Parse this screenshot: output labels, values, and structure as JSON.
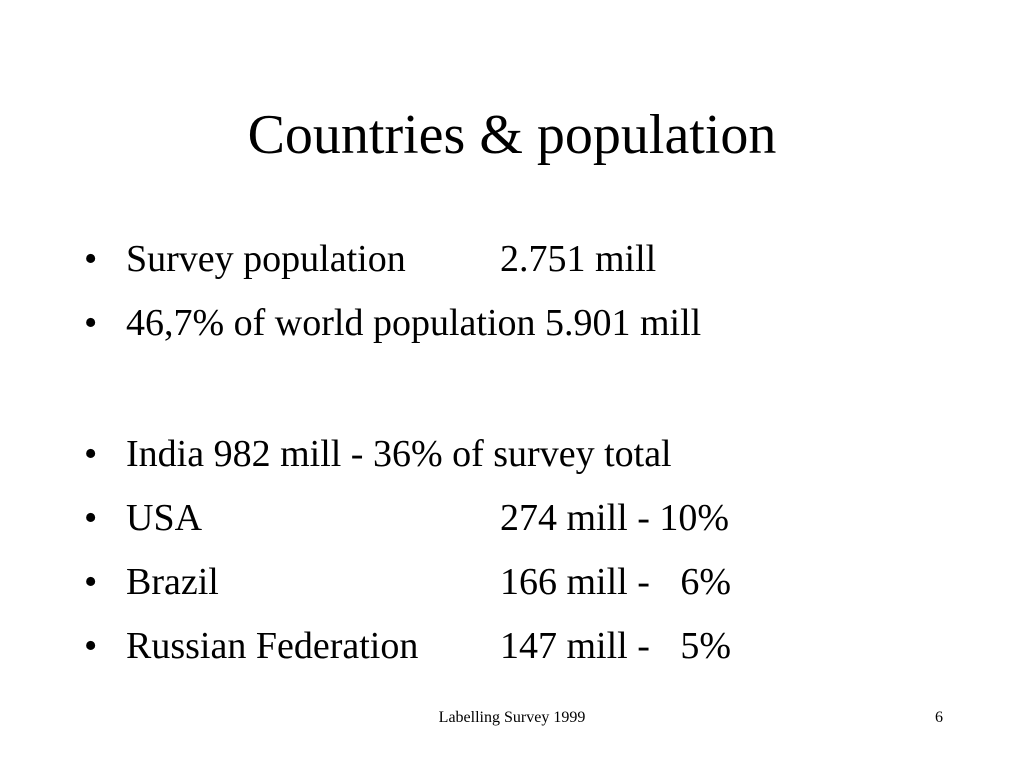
{
  "slide": {
    "title": "Countries & population",
    "bullet_glyph": "•",
    "bullets": [
      {
        "label": "Survey population",
        "value": "2.751 mill"
      },
      {
        "text": "46,7% of world population 5.901 mill"
      },
      {
        "text": "India 982 mill - 36% of survey total"
      },
      {
        "label": "USA",
        "value_main": "274 mill -",
        "value_pct": "10%"
      },
      {
        "label": "Brazil",
        "value_main": "166 mill -",
        "value_pct": "6%"
      },
      {
        "label": "Russian Federation",
        "value_main": "147 mill -",
        "value_pct": "5%"
      }
    ],
    "footer": "Labelling Survey 1999",
    "page_number": "6"
  }
}
